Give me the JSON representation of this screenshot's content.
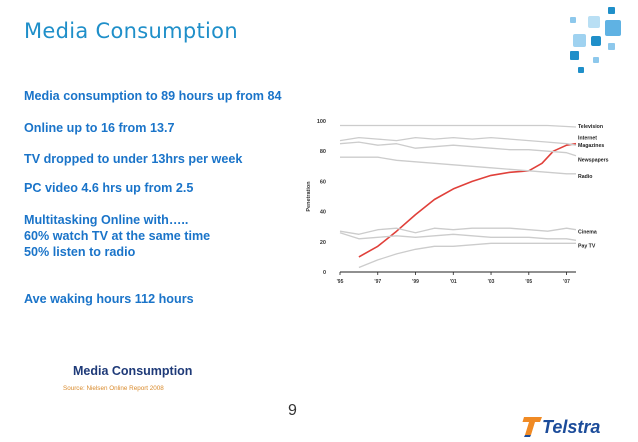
{
  "slide": {
    "title": "Media Consumption",
    "bullets": [
      "Media consumption  to 89 hours up from 84",
      "Online up to 16 from 13.7",
      "TV dropped to under 13hrs per week",
      "PC video 4.6 hrs up from 2.5",
      "Multitasking Online with…..",
      "60% watch TV at the same time",
      "50% listen to radio",
      "Ave waking hours 112 hours"
    ],
    "caption": "Media Consumption",
    "source": "Source: Nielsen Online Report 2008",
    "page_number": "9",
    "logo_text": "Telstra"
  },
  "colors": {
    "title": "#1f8fc9",
    "bullets": "#1a74c9",
    "caption": "#1e3a78",
    "source": "#d98a2b",
    "internet_line": "#e0403a",
    "other_lines": "#cccccc",
    "logo_text": "#1c4c9a",
    "logo_mark": "#f08a24"
  },
  "chart_data": {
    "type": "line",
    "title": "",
    "xlabel": "",
    "ylabel": "Penetration",
    "x_ticks": [
      "'95",
      "'97",
      "'99",
      "'01",
      "'03",
      "'05",
      "'07"
    ],
    "y_ticks": [
      0,
      20,
      40,
      60,
      80,
      100
    ],
    "xlim": [
      1995,
      2007.5
    ],
    "ylim": [
      0,
      100
    ],
    "series": [
      {
        "name": "Television",
        "x": [
          1995,
          1996,
          1997,
          1998,
          1999,
          2000,
          2001,
          2002,
          2003,
          2004,
          2005,
          2006,
          2007.5
        ],
        "values": [
          97,
          97,
          97,
          97,
          97,
          97,
          97,
          97,
          97,
          97,
          97,
          97,
          96
        ]
      },
      {
        "name": "Internet",
        "x": [
          1996,
          1997,
          1998,
          1999,
          2000,
          2001,
          2002,
          2003,
          2004,
          2005,
          2005.7,
          2006.3,
          2007,
          2007.5
        ],
        "values": [
          10,
          17,
          27,
          38,
          48,
          55,
          60,
          64,
          66,
          67,
          72,
          80,
          84,
          85
        ]
      },
      {
        "name": "Magazines",
        "x": [
          1995,
          1996,
          1997,
          1998,
          1999,
          2000,
          2001,
          2002,
          2003,
          2004,
          2005,
          2006,
          2007,
          2007.5
        ],
        "values": [
          87,
          89,
          88,
          87,
          89,
          88,
          89,
          88,
          89,
          88,
          87,
          86,
          85,
          84
        ]
      },
      {
        "name": "Newspapers",
        "x": [
          1995,
          1996,
          1997,
          1998,
          1999,
          2000,
          2001,
          2002,
          2003,
          2004,
          2005,
          2006,
          2007,
          2007.5
        ],
        "values": [
          85,
          86,
          84,
          85,
          82,
          83,
          84,
          83,
          82,
          81,
          81,
          80,
          79,
          77
        ]
      },
      {
        "name": "Radio",
        "x": [
          1995,
          1996,
          1997,
          1998,
          1999,
          2000,
          2001,
          2002,
          2003,
          2004,
          2005,
          2006,
          2007,
          2007.5
        ],
        "values": [
          76,
          76,
          76,
          74,
          73,
          72,
          71,
          70,
          69,
          68,
          67,
          66,
          65,
          65
        ]
      },
      {
        "name": "Cinema",
        "x": [
          1995,
          1996,
          1997,
          1998,
          1999,
          2000,
          2001,
          2002,
          2003,
          2004,
          2005,
          2006,
          2007,
          2007.5
        ],
        "values": [
          27,
          25,
          28,
          29,
          26,
          29,
          28,
          29,
          29,
          29,
          28,
          27,
          29,
          28
        ]
      },
      {
        "name": "Pay TV",
        "x": [
          1996,
          1997,
          1998,
          1999,
          2000,
          2001,
          2002,
          2003,
          2004,
          2005,
          2006,
          2007,
          2007.5
        ],
        "values": [
          3,
          8,
          12,
          15,
          17,
          17,
          18,
          19,
          19,
          19,
          19,
          19,
          19
        ]
      },
      {
        "name": "",
        "x": [
          1995,
          1996,
          1997,
          1998,
          1999,
          2000,
          2001,
          2002,
          2003,
          2004,
          2005,
          2006,
          2007,
          2007.5
        ],
        "values": [
          26,
          22,
          23,
          24,
          23,
          24,
          25,
          24,
          23,
          23,
          23,
          22,
          22,
          21
        ]
      }
    ],
    "grid": false,
    "legend": "right, labels at line ends"
  }
}
